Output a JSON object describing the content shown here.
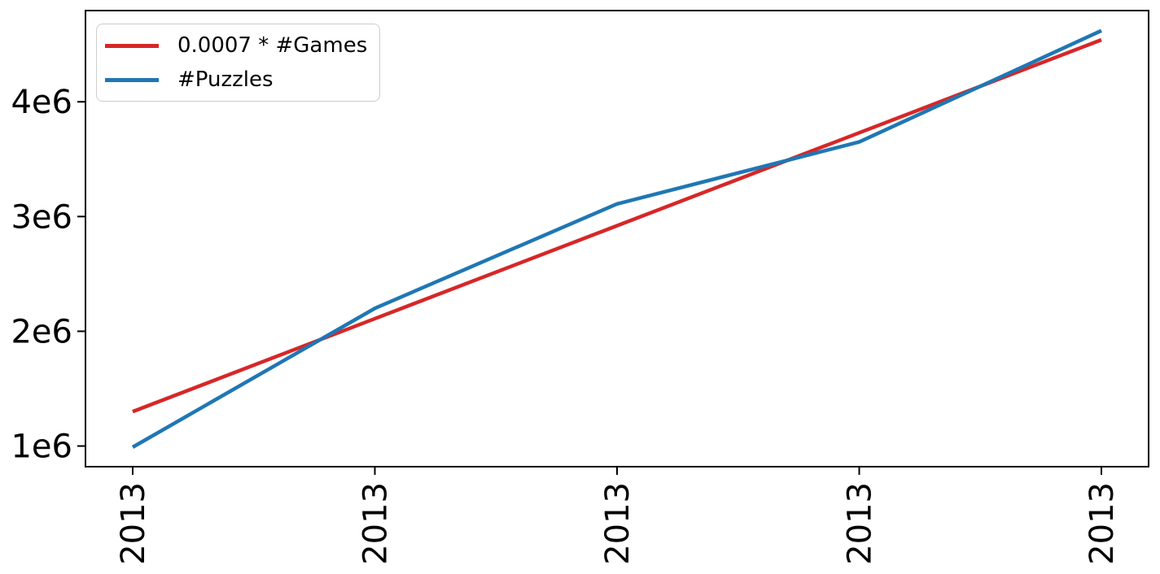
{
  "figure": {
    "background": "#ffffff",
    "spine_color": "#000000",
    "tick_color": "#000000",
    "text_color": "#000000"
  },
  "legend": {
    "position": "upper left",
    "border_color": "#cccccc",
    "background": "#ffffff",
    "items": [
      {
        "label": "0.0007 * #Games",
        "color": "#d62728",
        "swatch": "red-line-swatch"
      },
      {
        "label": "#Puzzles",
        "color": "#1f77b4",
        "swatch": "blue-line-swatch"
      }
    ]
  },
  "chart_data": {
    "type": "line",
    "title": "",
    "xlabel": "",
    "ylabel": "",
    "categories": [
      "2013",
      "2013",
      "2013",
      "2013",
      "2013"
    ],
    "x_tick_rotation_deg": 90,
    "series": [
      {
        "name": "0.0007 * #Games",
        "color": "#d62728",
        "values": [
          1300000,
          2110000,
          2920000,
          3730000,
          4540000
        ]
      },
      {
        "name": "#Puzzles",
        "color": "#1f77b4",
        "values": [
          990000,
          2200000,
          3110000,
          3650000,
          4620000
        ]
      }
    ],
    "y_ticks": [
      {
        "value": 1000000,
        "label": "1e6"
      },
      {
        "value": 2000000,
        "label": "2e6"
      },
      {
        "value": 3000000,
        "label": "3e6"
      },
      {
        "value": 4000000,
        "label": "4e6"
      }
    ],
    "xlim": [
      -0.195,
      4.195
    ],
    "ylim": [
      820000,
      4795000
    ],
    "grid": false,
    "legend_position": "upper left"
  }
}
